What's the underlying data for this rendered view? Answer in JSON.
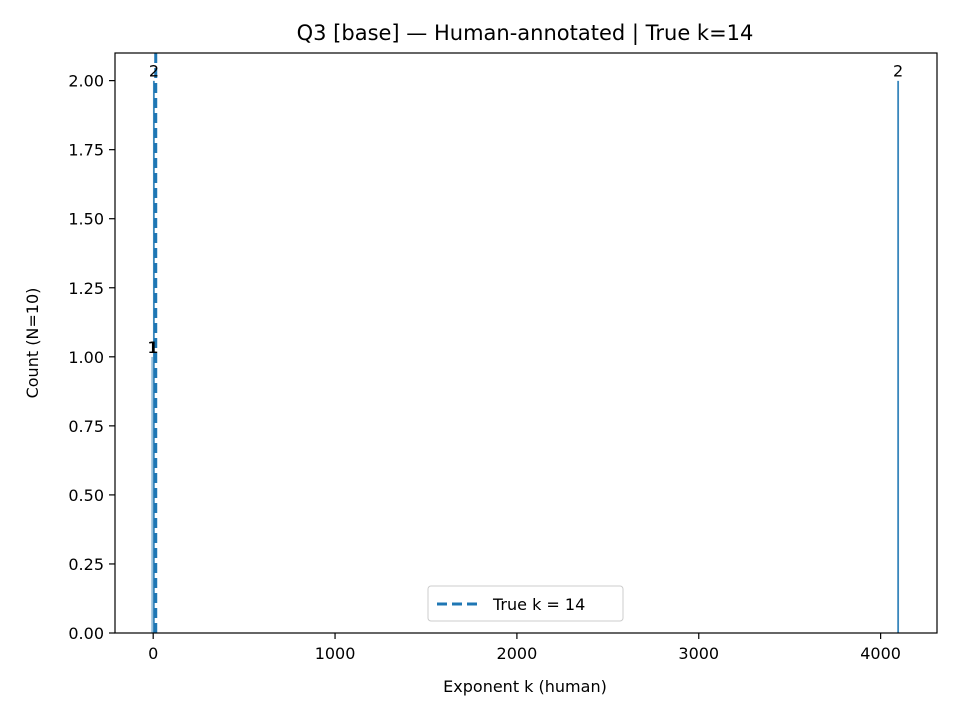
{
  "chart_data": {
    "type": "bar",
    "title": "Q3 [base] — Human-annotated | True k=14",
    "xlabel": "Exponent k (human)",
    "ylabel": "Count (N=10)",
    "xlim": [
      -210,
      4310
    ],
    "ylim": [
      0,
      2.1
    ],
    "xticks": [
      0,
      1000,
      2000,
      3000,
      4000
    ],
    "yticks": [
      0.0,
      0.25,
      0.5,
      0.75,
      1.0,
      1.25,
      1.5,
      1.75,
      2.0
    ],
    "bars": [
      {
        "x": -4,
        "count": 1,
        "label": "1"
      },
      {
        "x": 2,
        "count": 1,
        "label": "1"
      },
      {
        "x": 4,
        "count": 2,
        "label": "2"
      },
      {
        "x": 4096,
        "count": 2,
        "label": "2"
      }
    ],
    "reference_line": {
      "x": 14,
      "label": "True k = 14",
      "style": "dashed"
    },
    "legend": {
      "position": "lower center",
      "entries": [
        "True k = 14"
      ]
    },
    "grid": false,
    "colors": {
      "bar": "#1f77b4",
      "line": "#1f77b4"
    }
  }
}
